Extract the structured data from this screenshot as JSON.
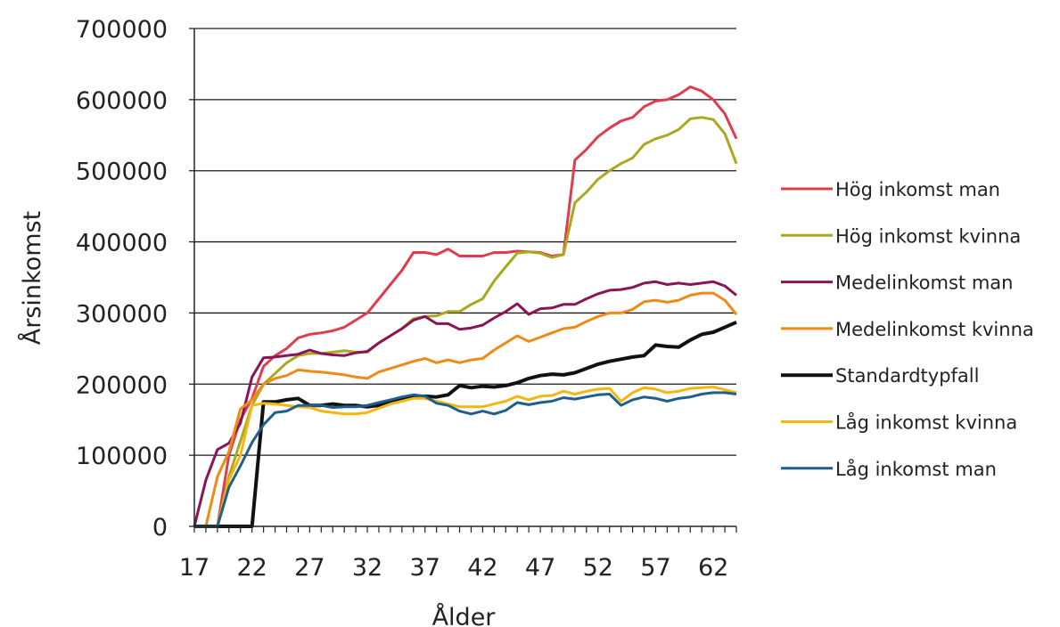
{
  "chart_data": {
    "type": "line",
    "xlabel": "Ålder",
    "ylabel": "Årsinkomst",
    "xlim": [
      17,
      64
    ],
    "ylim": [
      0,
      700000
    ],
    "x_tick_labels": [
      "17",
      "22",
      "27",
      "32",
      "37",
      "42",
      "47",
      "52",
      "57",
      "62"
    ],
    "y_tick_labels": [
      "0",
      "100000",
      "200000",
      "300000",
      "400000",
      "500000",
      "600000",
      "700000"
    ],
    "grid": "horizontal",
    "legend_position": "right",
    "x": [
      17,
      18,
      19,
      20,
      21,
      22,
      23,
      24,
      25,
      26,
      27,
      28,
      29,
      30,
      31,
      32,
      33,
      34,
      35,
      36,
      37,
      38,
      39,
      40,
      41,
      42,
      43,
      44,
      45,
      46,
      47,
      48,
      49,
      50,
      51,
      52,
      53,
      54,
      55,
      56,
      57,
      58,
      59,
      60,
      61,
      62,
      63,
      64
    ],
    "series": [
      {
        "name": "Hög inkomst man",
        "color": "#e03c4f",
        "values": [
          0,
          0,
          0,
          100000,
          150000,
          180000,
          225000,
          240000,
          250000,
          265000,
          270000,
          272000,
          275000,
          280000,
          290000,
          300000,
          320000,
          340000,
          360000,
          385000,
          385000,
          382000,
          390000,
          380000,
          380000,
          380000,
          385000,
          385000,
          387000,
          386000,
          385000,
          380000,
          382000,
          515000,
          530000,
          548000,
          560000,
          570000,
          575000,
          590000,
          598000,
          600000,
          607000,
          618000,
          612000,
          600000,
          580000,
          545000
        ]
      },
      {
        "name": "Hög inkomst kvinna",
        "color": "#aaa81f",
        "values": [
          0,
          0,
          0,
          70000,
          120000,
          170000,
          200000,
          215000,
          230000,
          240000,
          243000,
          243000,
          245000,
          247000,
          245000,
          245000,
          258000,
          268000,
          278000,
          292000,
          295000,
          296000,
          302000,
          302000,
          312000,
          320000,
          345000,
          365000,
          384000,
          386000,
          384000,
          378000,
          382000,
          455000,
          470000,
          488000,
          500000,
          510000,
          518000,
          537000,
          545000,
          550000,
          558000,
          573000,
          575000,
          572000,
          552000,
          510000
        ]
      },
      {
        "name": "Medelinkomst man",
        "color": "#8a1556",
        "values": [
          0,
          65000,
          108000,
          117000,
          145000,
          210000,
          237000,
          238000,
          240000,
          242000,
          248000,
          243000,
          241000,
          240000,
          244000,
          246000,
          258000,
          268000,
          278000,
          290000,
          295000,
          285000,
          285000,
          277000,
          279000,
          283000,
          293000,
          302000,
          313000,
          298000,
          306000,
          307000,
          312000,
          312000,
          320000,
          327000,
          332000,
          333000,
          336000,
          342000,
          344000,
          340000,
          342000,
          340000,
          342000,
          344000,
          338000,
          325000
        ]
      },
      {
        "name": "Medelinkomst kvinna",
        "color": "#ed8b16",
        "values": [
          0,
          0,
          70000,
          105000,
          165000,
          178000,
          200000,
          208000,
          212000,
          220000,
          218000,
          217000,
          215000,
          213000,
          210000,
          208000,
          217000,
          222000,
          227000,
          232000,
          236000,
          230000,
          234000,
          230000,
          234000,
          236000,
          248000,
          258000,
          268000,
          260000,
          266000,
          272000,
          278000,
          280000,
          288000,
          295000,
          300000,
          300000,
          305000,
          316000,
          318000,
          315000,
          318000,
          325000,
          328000,
          328000,
          318000,
          298000
        ]
      },
      {
        "name": "Standardtypfall",
        "color": "#111111",
        "values": [
          0,
          0,
          0,
          0,
          0,
          0,
          175000,
          175000,
          178000,
          180000,
          170000,
          170000,
          172000,
          170000,
          170000,
          168000,
          170000,
          175000,
          178000,
          182000,
          183000,
          182000,
          185000,
          198000,
          195000,
          197000,
          196000,
          198000,
          202000,
          208000,
          212000,
          214000,
          213000,
          216000,
          222000,
          228000,
          232000,
          235000,
          238000,
          240000,
          255000,
          253000,
          252000,
          262000,
          270000,
          273000,
          280000,
          287000
        ]
      },
      {
        "name": "Låg inkomst kvinna",
        "color": "#f5b60f",
        "values": [
          0,
          0,
          0,
          65000,
          100000,
          170000,
          173000,
          172000,
          170000,
          168000,
          167000,
          162000,
          160000,
          158000,
          158000,
          160000,
          166000,
          172000,
          176000,
          180000,
          180000,
          176000,
          172000,
          168000,
          168000,
          168000,
          172000,
          176000,
          183000,
          178000,
          183000,
          184000,
          190000,
          186000,
          190000,
          193000,
          194000,
          176000,
          188000,
          195000,
          193000,
          188000,
          190000,
          194000,
          195000,
          196000,
          192000,
          188000
        ]
      },
      {
        "name": "Låg inkomst man",
        "color": "#1f5f8b",
        "values": [
          0,
          0,
          0,
          55000,
          85000,
          118000,
          143000,
          160000,
          162000,
          170000,
          170000,
          170000,
          167000,
          168000,
          168000,
          170000,
          174000,
          178000,
          182000,
          185000,
          183000,
          173000,
          170000,
          162000,
          158000,
          162000,
          158000,
          163000,
          174000,
          171000,
          174000,
          176000,
          181000,
          179000,
          182000,
          185000,
          186000,
          170000,
          178000,
          182000,
          180000,
          176000,
          180000,
          182000,
          186000,
          188000,
          188000,
          186000
        ]
      }
    ]
  }
}
